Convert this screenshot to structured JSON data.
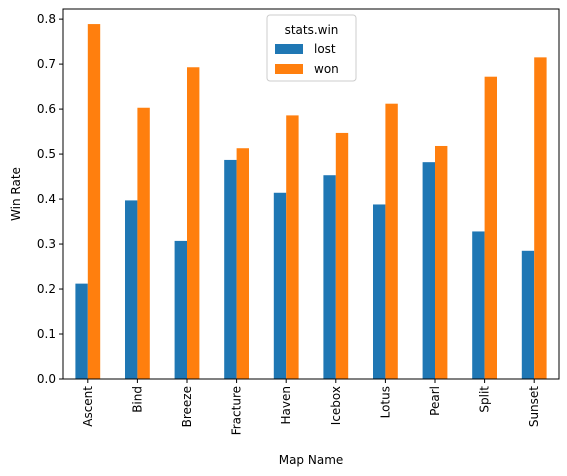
{
  "chart_data": {
    "type": "bar",
    "title": "",
    "xlabel": "Map Name",
    "ylabel": "Win Rate",
    "ylim": [
      0,
      0.8225
    ],
    "yticks": [
      "0.0",
      "0.1",
      "0.2",
      "0.3",
      "0.4",
      "0.5",
      "0.6",
      "0.7",
      "0.8"
    ],
    "categories": [
      "Ascent",
      "Bind",
      "Breeze",
      "Fracture",
      "Haven",
      "Icebox",
      "Lotus",
      "Pearl",
      "Split",
      "Sunset"
    ],
    "legend": {
      "title": "stats.win",
      "placement": "top-center"
    },
    "series": [
      {
        "name": "lost",
        "color": "#1f77b4",
        "values": [
          0.212,
          0.397,
          0.307,
          0.487,
          0.414,
          0.453,
          0.388,
          0.482,
          0.328,
          0.285
        ]
      },
      {
        "name": "won",
        "color": "#ff7f0e",
        "values": [
          0.789,
          0.603,
          0.693,
          0.513,
          0.586,
          0.547,
          0.612,
          0.518,
          0.672,
          0.715
        ]
      }
    ],
    "grid": false
  }
}
